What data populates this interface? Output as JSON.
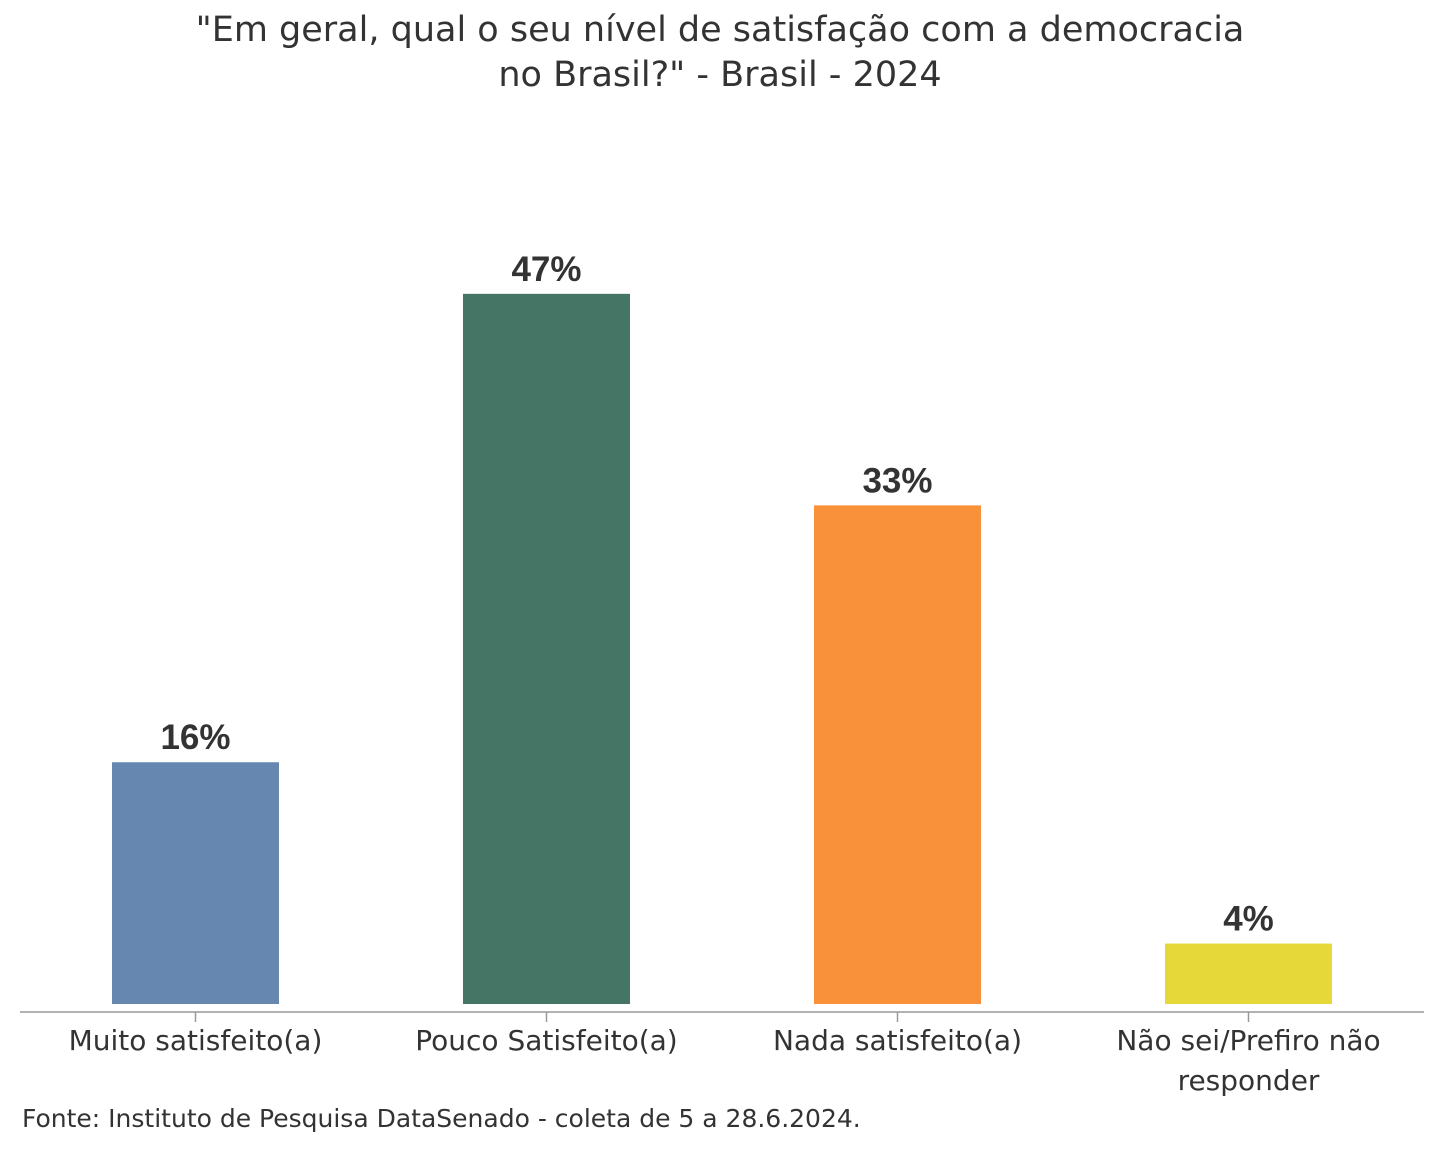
{
  "chart_data": {
    "type": "bar",
    "title": [
      "\"Em geral, qual o seu nível de satisfação com a democracia",
      "no Brasil?\" - Brasil - 2024"
    ],
    "categories": [
      [
        "Muito satisfeito(a)"
      ],
      [
        "Pouco Satisfeito(a)"
      ],
      [
        "Nada satisfeito(a)"
      ],
      [
        "Não sei/Prefiro não",
        "responder"
      ]
    ],
    "values": [
      16,
      47,
      33,
      4
    ],
    "value_labels": [
      "16%",
      "47%",
      "33%",
      "4%"
    ],
    "colors": [
      "#6688b0",
      "#457565",
      "#f9913b",
      "#e6d838"
    ],
    "ylim": [
      0,
      50
    ],
    "xlabel": "",
    "ylabel": "",
    "grid": false,
    "legend": "none"
  },
  "source": "Fonte: Instituto de Pesquisa DataSenado - coleta de 5 a 28.6.2024."
}
